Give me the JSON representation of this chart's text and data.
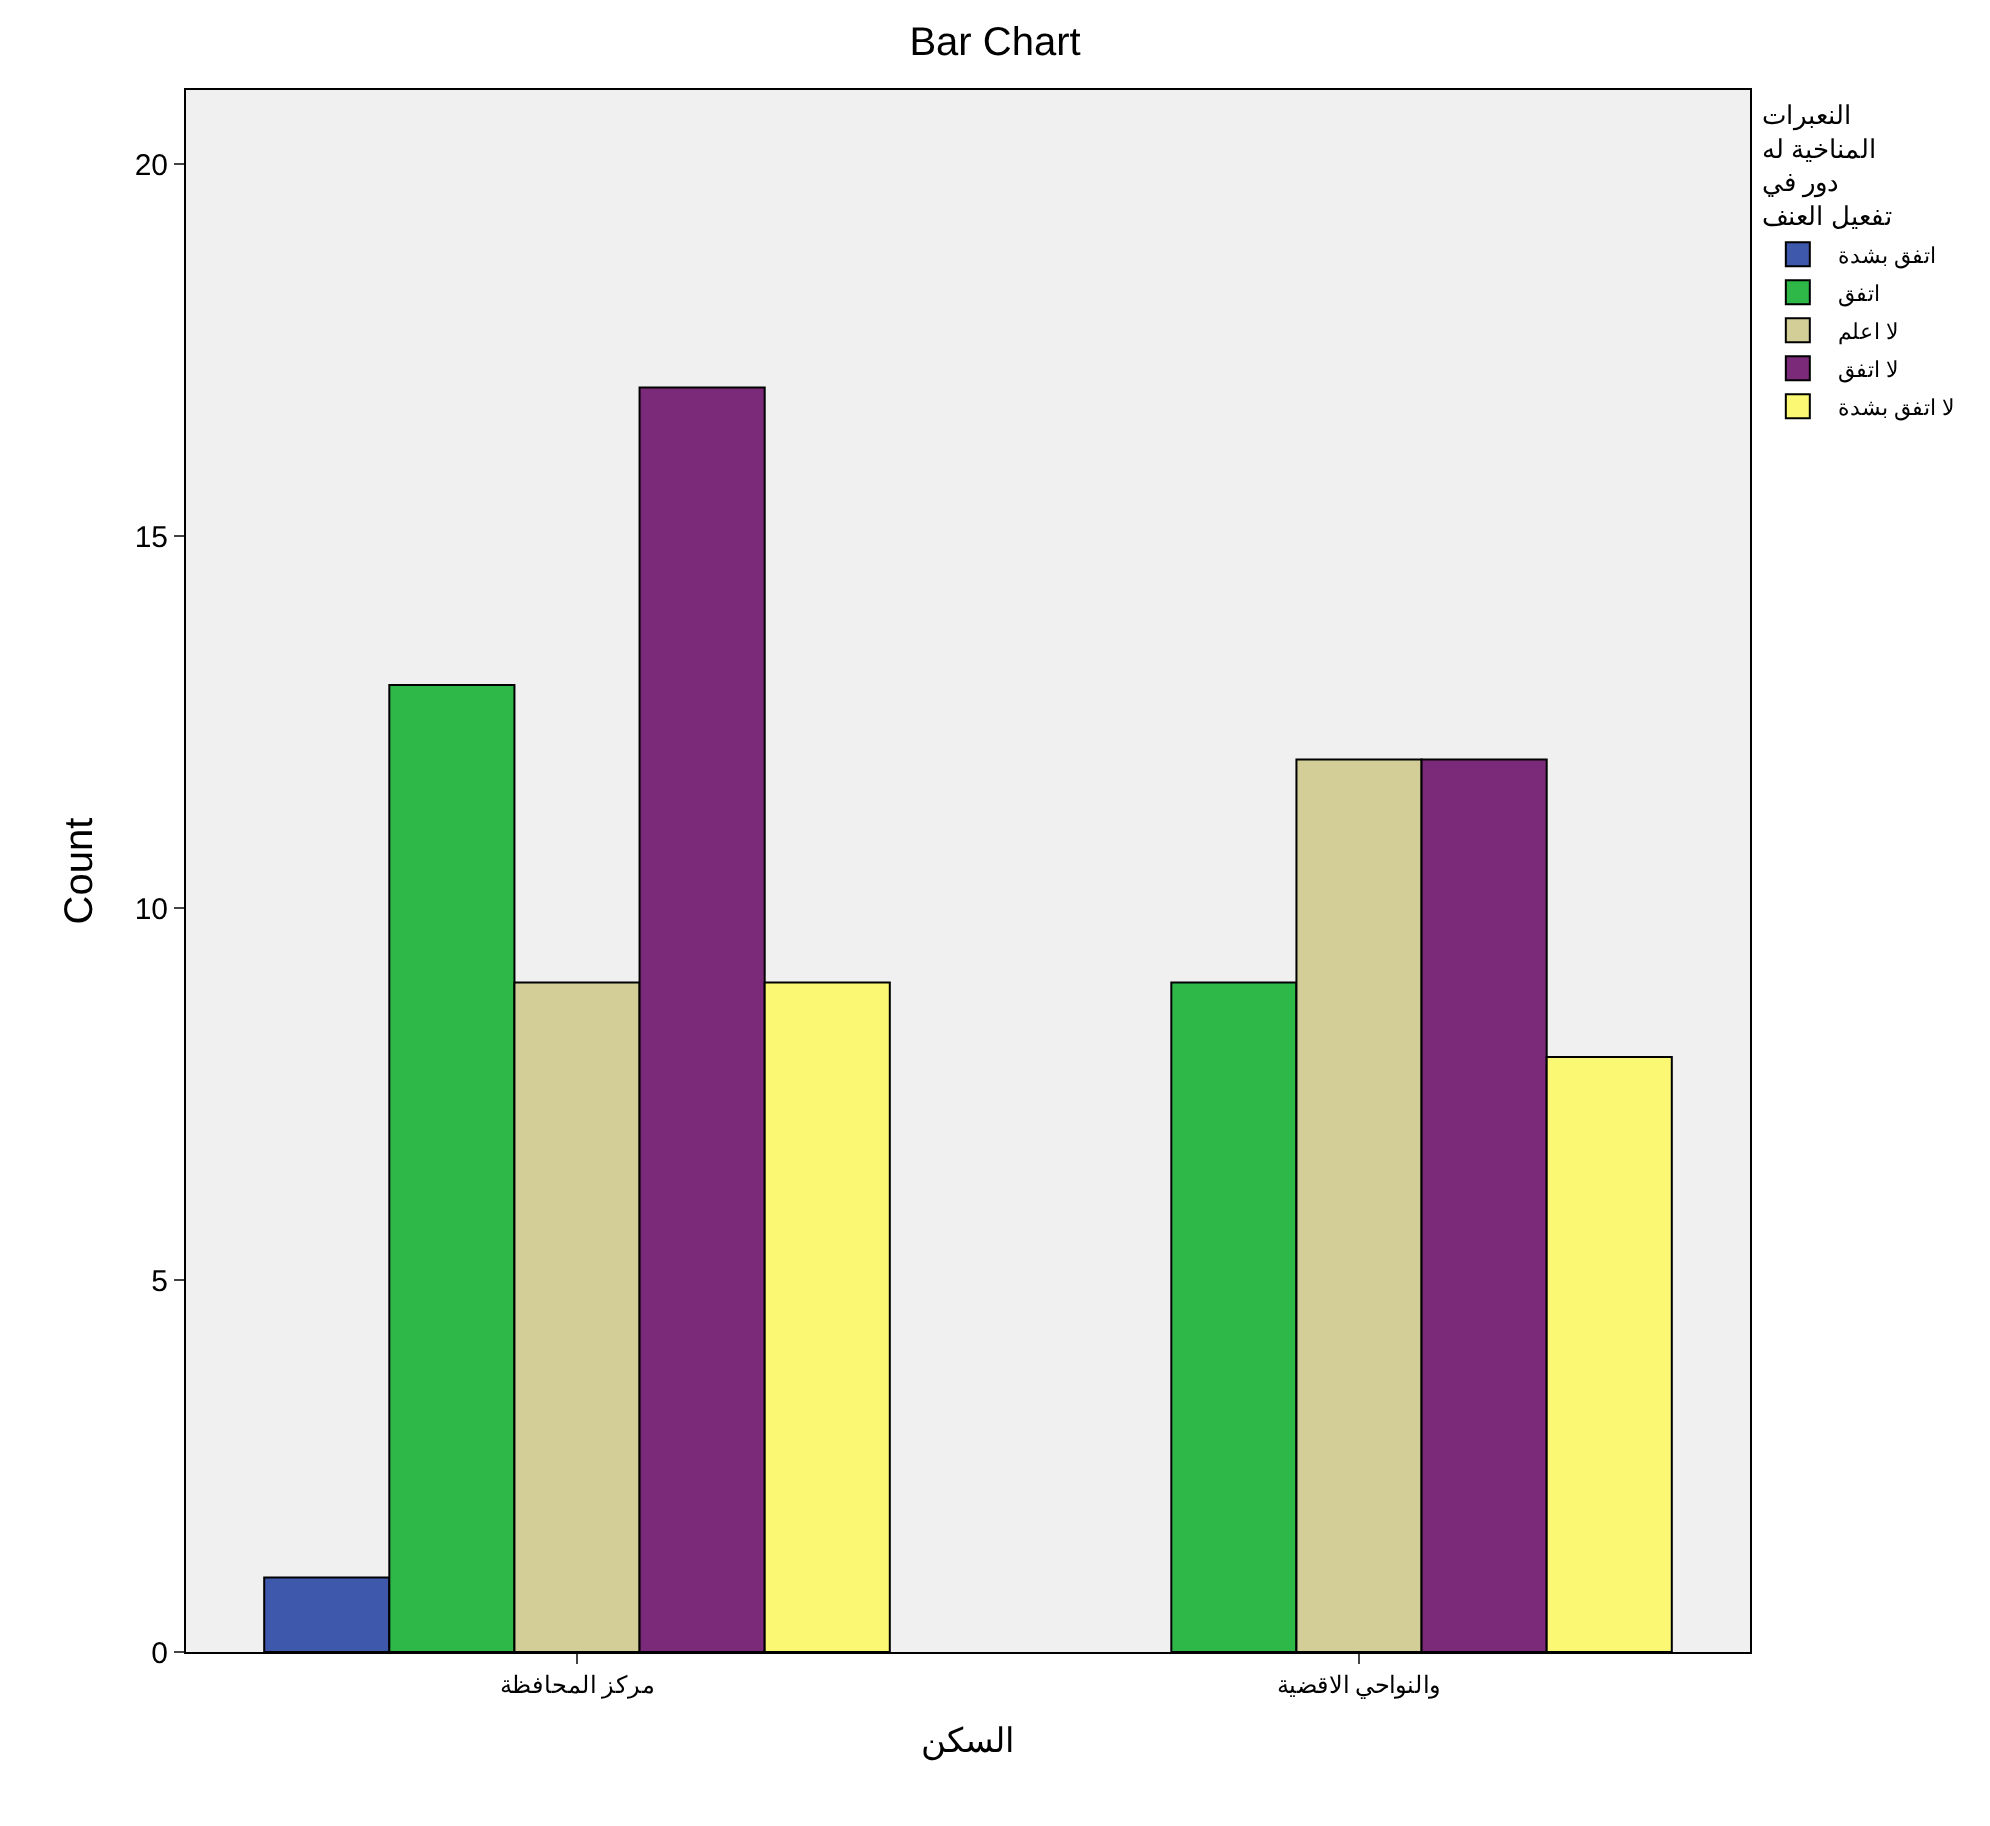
{
  "chart_data": {
    "type": "bar",
    "title": "Bar Chart",
    "xlabel": "السكن",
    "ylabel": "Count",
    "legend_title": "النعبرات\nالمناخية له\nدور في\nتفعيل العنف",
    "categories": [
      "مركز المحافظة",
      "والنواحي الاقضية"
    ],
    "series": [
      {
        "name": "اتفق بشدة",
        "color": "#3e58ac",
        "values": [
          1,
          null
        ]
      },
      {
        "name": "اتفق",
        "color": "#2eb848",
        "values": [
          13,
          9
        ]
      },
      {
        "name": "لا اعلم",
        "color": "#d3ce97",
        "values": [
          9,
          12
        ]
      },
      {
        "name": "لا اتفق",
        "color": "#7b2a7a",
        "values": [
          17,
          12
        ]
      },
      {
        "name": "لا اتفق بشدة",
        "color": "#fbf873",
        "values": [
          9,
          8
        ]
      }
    ],
    "ylim": [
      0,
      21
    ],
    "yticks": [
      0,
      5,
      10,
      15,
      20
    ],
    "grid": false,
    "legend": "top right"
  }
}
